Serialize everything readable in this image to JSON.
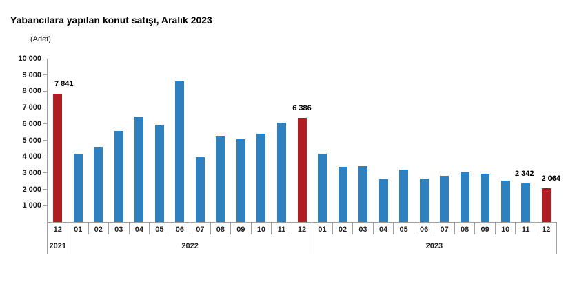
{
  "title": "Yabancılara yapılan konut satışı, Aralık 2023",
  "unit_label": "(Adet)",
  "colors": {
    "bar_blue": "#2e80be",
    "bar_red": "#b01e24",
    "axis_gray": "#a0a0a0",
    "text_black": "#000000",
    "axis_text": "#262626"
  },
  "chart_data": {
    "type": "bar",
    "title": "Yabancılara yapılan konut satışı, Aralık 2023",
    "ylabel": "(Adet)",
    "xlabel": "",
    "ylim": [
      0,
      10000
    ],
    "ytick_step": 1000,
    "grid": false,
    "legend": false,
    "yticks": [
      {
        "value": 1000,
        "label": "1 000"
      },
      {
        "value": 2000,
        "label": "2 000"
      },
      {
        "value": 3000,
        "label": "3 000"
      },
      {
        "value": 4000,
        "label": "4 000"
      },
      {
        "value": 5000,
        "label": "5 000"
      },
      {
        "value": 6000,
        "label": "6 000"
      },
      {
        "value": 7000,
        "label": "7 000"
      },
      {
        "value": 8000,
        "label": "8 000"
      },
      {
        "value": 9000,
        "label": "9 000"
      },
      {
        "value": 10000,
        "label": "10 000"
      }
    ],
    "groups": [
      {
        "year": "2021",
        "months": [
          "12"
        ]
      },
      {
        "year": "2022",
        "months": [
          "01",
          "02",
          "03",
          "04",
          "05",
          "06",
          "07",
          "08",
          "09",
          "10",
          "11",
          "12"
        ]
      },
      {
        "year": "2023",
        "months": [
          "01",
          "02",
          "03",
          "04",
          "05",
          "06",
          "07",
          "08",
          "09",
          "10",
          "11",
          "12"
        ]
      }
    ],
    "points": [
      {
        "year": "2021",
        "month": "12",
        "value": 7841,
        "label": "7 841",
        "highlight": true,
        "label_dx": 9
      },
      {
        "year": "2022",
        "month": "01",
        "value": 4180,
        "highlight": false
      },
      {
        "year": "2022",
        "month": "02",
        "value": 4600,
        "highlight": false
      },
      {
        "year": "2022",
        "month": "03",
        "value": 5590,
        "highlight": false
      },
      {
        "year": "2022",
        "month": "04",
        "value": 6470,
        "highlight": false
      },
      {
        "year": "2022",
        "month": "05",
        "value": 5960,
        "highlight": false
      },
      {
        "year": "2022",
        "month": "06",
        "value": 8600,
        "highlight": false
      },
      {
        "year": "2022",
        "month": "07",
        "value": 3950,
        "highlight": false
      },
      {
        "year": "2022",
        "month": "08",
        "value": 5280,
        "highlight": false
      },
      {
        "year": "2022",
        "month": "09",
        "value": 5060,
        "highlight": false
      },
      {
        "year": "2022",
        "month": "10",
        "value": 5390,
        "highlight": false
      },
      {
        "year": "2022",
        "month": "11",
        "value": 6070,
        "highlight": false
      },
      {
        "year": "2022",
        "month": "12",
        "value": 6386,
        "label": "6 386",
        "highlight": true,
        "label_dx": 0
      },
      {
        "year": "2023",
        "month": "01",
        "value": 4180,
        "highlight": false
      },
      {
        "year": "2023",
        "month": "02",
        "value": 3380,
        "highlight": false
      },
      {
        "year": "2023",
        "month": "03",
        "value": 3420,
        "highlight": false
      },
      {
        "year": "2023",
        "month": "04",
        "value": 2600,
        "highlight": false
      },
      {
        "year": "2023",
        "month": "05",
        "value": 3210,
        "highlight": false
      },
      {
        "year": "2023",
        "month": "06",
        "value": 2660,
        "highlight": false
      },
      {
        "year": "2023",
        "month": "07",
        "value": 2840,
        "highlight": false
      },
      {
        "year": "2023",
        "month": "08",
        "value": 3060,
        "highlight": false
      },
      {
        "year": "2023",
        "month": "09",
        "value": 2940,
        "highlight": false
      },
      {
        "year": "2023",
        "month": "10",
        "value": 2530,
        "highlight": false
      },
      {
        "year": "2023",
        "month": "11",
        "value": 2342,
        "label": "2 342",
        "highlight": false,
        "label_dx": -2
      },
      {
        "year": "2023",
        "month": "12",
        "value": 2064,
        "label": "2 064",
        "highlight": true,
        "label_dx": 7
      }
    ]
  }
}
